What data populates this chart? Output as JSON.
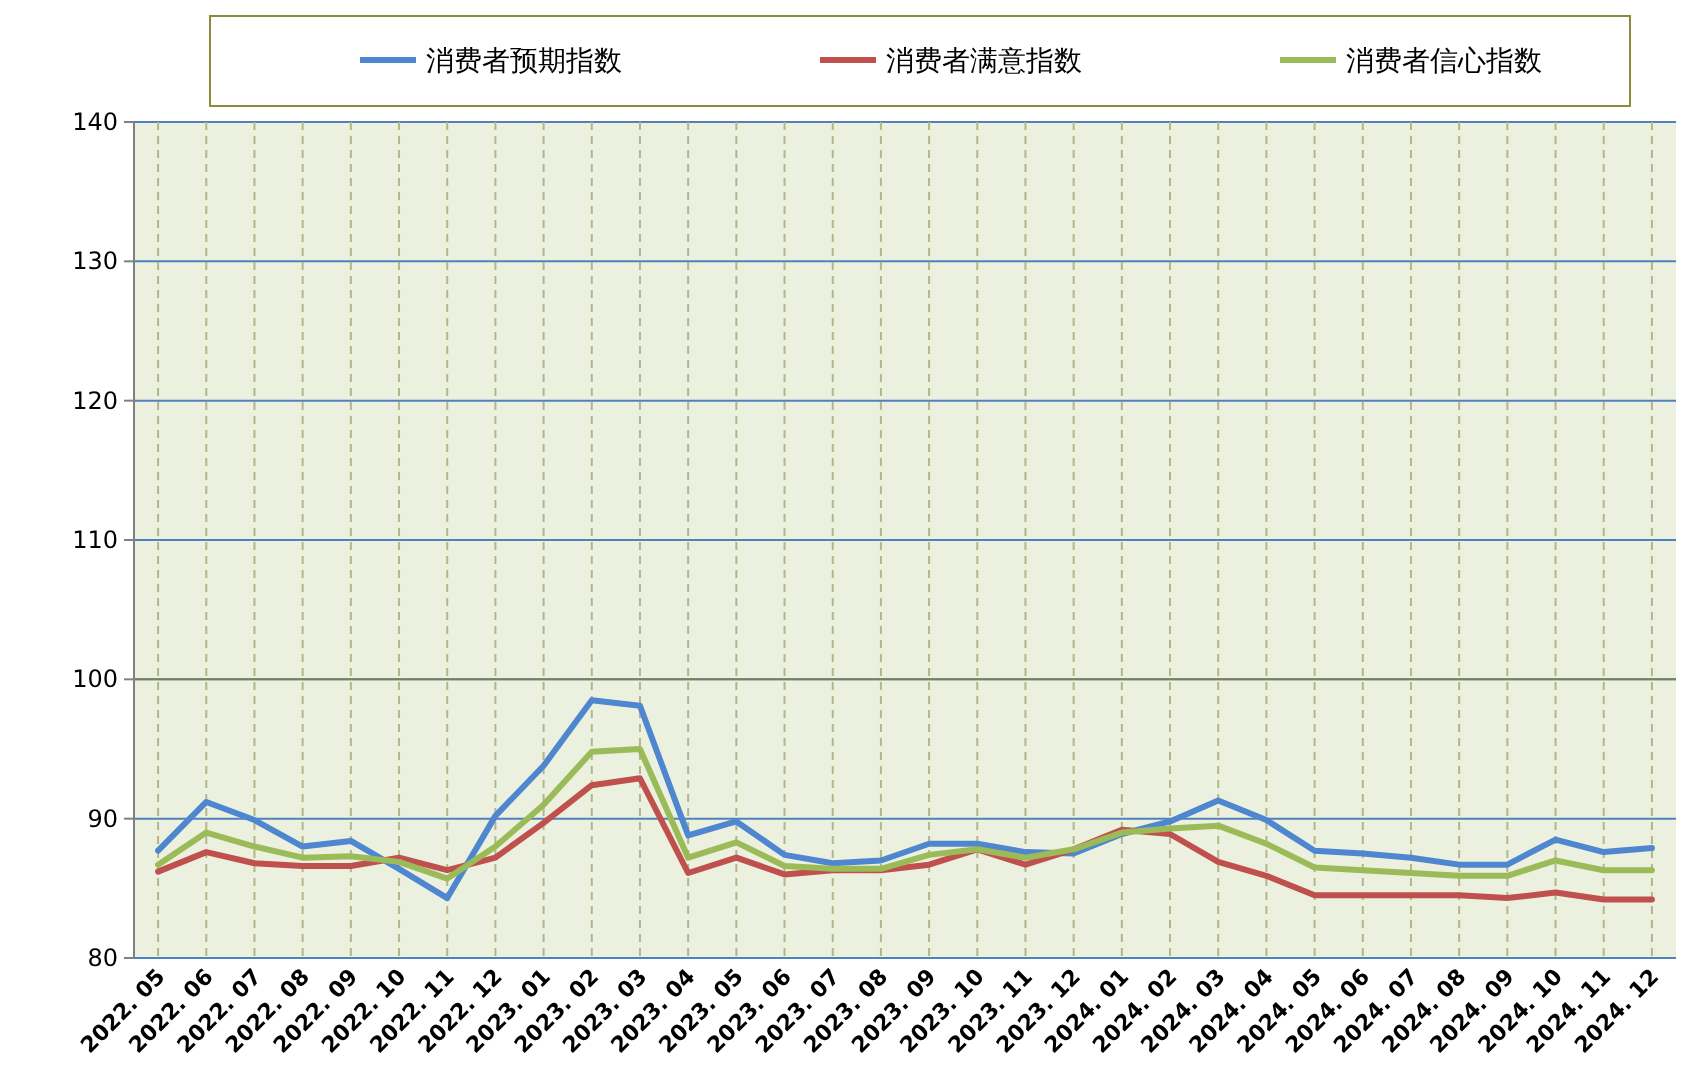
{
  "chart_data": {
    "type": "line",
    "categories": [
      "2022. 05",
      "2022. 06",
      "2022. 07",
      "2022. 08",
      "2022. 09",
      "2022. 10",
      "2022. 11",
      "2022. 12",
      "2023. 01",
      "2023. 02",
      "2023. 03",
      "2023. 04",
      "2023. 05",
      "2023. 06",
      "2023. 07",
      "2023. 08",
      "2023. 09",
      "2023. 10",
      "2023. 11",
      "2023. 12",
      "2024. 01",
      "2024. 02",
      "2024. 03",
      "2024. 04",
      "2024. 05",
      "2024. 06",
      "2024. 07",
      "2024. 08",
      "2024. 09",
      "2024. 10",
      "2024. 11",
      "2024. 12"
    ],
    "series": [
      {
        "name": "消费者预期指数",
        "color": "#4f86d0",
        "values": [
          87.7,
          91.2,
          89.9,
          88.0,
          88.4,
          86.4,
          84.3,
          90.2,
          93.8,
          98.5,
          98.1,
          88.8,
          89.8,
          87.4,
          86.8,
          87.0,
          88.2,
          88.2,
          87.6,
          87.5,
          88.9,
          89.8,
          91.3,
          89.9,
          87.7,
          87.5,
          87.2,
          86.7,
          86.7,
          88.5,
          87.6,
          87.9
        ]
      },
      {
        "name": "消费者满意指数",
        "color": "#c0504d",
        "values": [
          86.2,
          87.6,
          86.8,
          86.6,
          86.6,
          87.2,
          86.3,
          87.2,
          89.7,
          92.4,
          92.9,
          86.1,
          87.2,
          86.0,
          86.3,
          86.3,
          86.7,
          87.8,
          86.7,
          87.8,
          89.2,
          88.9,
          86.9,
          85.9,
          84.5,
          84.5,
          84.5,
          84.5,
          84.3,
          84.7,
          84.2,
          84.2
        ]
      },
      {
        "name": "消费者信心指数",
        "color": "#9bbb59",
        "values": [
          86.7,
          89.0,
          88.0,
          87.2,
          87.3,
          86.9,
          85.7,
          88.0,
          91.0,
          94.8,
          95.0,
          87.2,
          88.3,
          86.6,
          86.4,
          86.4,
          87.4,
          87.8,
          87.2,
          87.8,
          89.0,
          89.3,
          89.5,
          88.2,
          86.5,
          86.3,
          86.1,
          85.9,
          85.9,
          87.0,
          86.3,
          86.3
        ]
      }
    ],
    "ylim": [
      80,
      140
    ],
    "yticks": [
      80,
      90,
      100,
      110,
      120,
      130,
      140
    ],
    "grid": true,
    "legend": "top",
    "marker": "none",
    "line_style": "solid",
    "ref_lines": [
      {
        "axis": "y",
        "value": 100,
        "color": "#7f7f5f"
      }
    ]
  }
}
